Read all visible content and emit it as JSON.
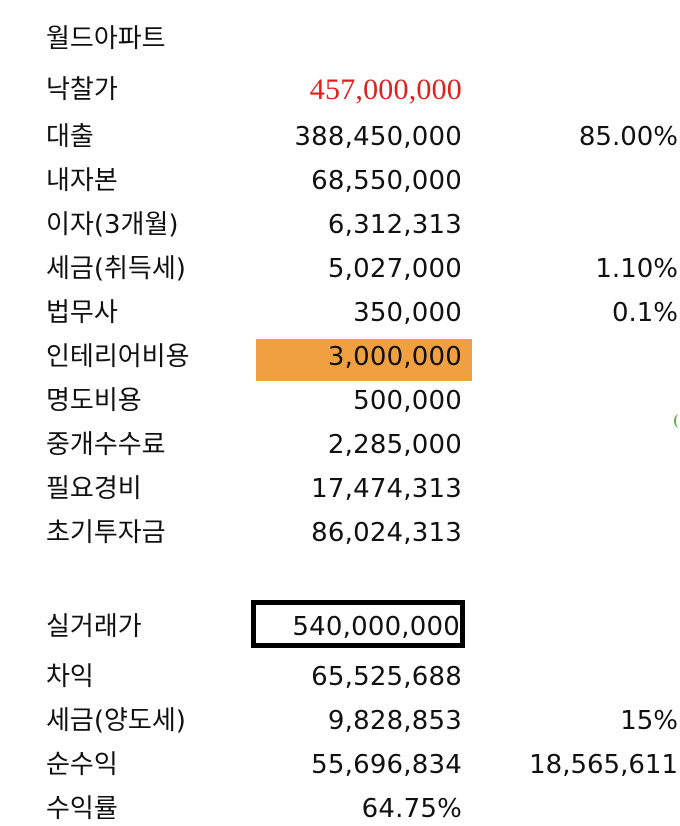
{
  "title": "월드아파트",
  "rows1": [
    {
      "label": "낙찰가",
      "value": "457,000,000",
      "pct": ""
    },
    {
      "label": "대출",
      "value": "388,450,000",
      "pct": "85.00%"
    },
    {
      "label": "내자본",
      "value": "68,550,000",
      "pct": ""
    },
    {
      "label": "이자(3개월)",
      "value": "6,312,313",
      "pct": ""
    },
    {
      "label": "세금(취득세)",
      "value": "5,027,000",
      "pct": "1.10%"
    },
    {
      "label": "법무사",
      "value": "350,000",
      "pct": "0.1%"
    },
    {
      "label": "인테리어비용",
      "value": "3,000,000",
      "pct": ""
    },
    {
      "label": "명도비용",
      "value": "500,000",
      "pct": ""
    },
    {
      "label": "중개수수료",
      "value": "2,285,000",
      "pct": ""
    },
    {
      "label": "필요경비",
      "value": "17,474,313",
      "pct": ""
    },
    {
      "label": "초기투자금",
      "value": "86,024,313",
      "pct": ""
    }
  ],
  "rows2": [
    {
      "label": "실거래가",
      "value": "540,000,000",
      "pct": ""
    },
    {
      "label": "차익",
      "value": "65,525,688",
      "pct": ""
    },
    {
      "label": "세금(양도세)",
      "value": "9,828,853",
      "pct": "15%"
    },
    {
      "label": "순수익",
      "value": "55,696,834",
      "pct": "18,565,611"
    },
    {
      "label": "수익률",
      "value": "64.75%",
      "pct": ""
    }
  ],
  "colors": {
    "highlight": "#f0a040",
    "red_text": "#e0201b",
    "box_border": "#000000"
  }
}
